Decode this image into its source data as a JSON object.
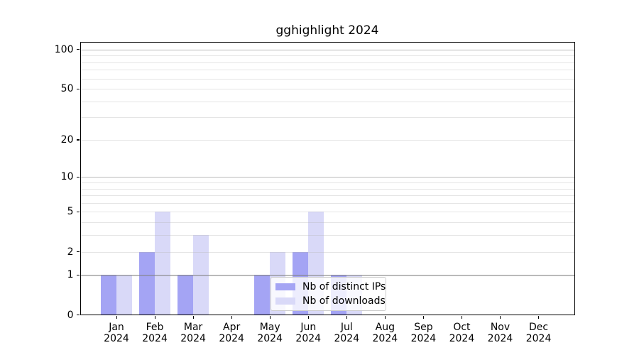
{
  "chart_data": {
    "type": "bar",
    "title": "gghighlight 2024",
    "categories": [
      "Jan",
      "Feb",
      "Mar",
      "Apr",
      "May",
      "Jun",
      "Jul",
      "Aug",
      "Sep",
      "Oct",
      "Nov",
      "Dec"
    ],
    "year_label": "2024",
    "series": [
      {
        "name": "Nb of distinct IPs",
        "color": "#a4a4f4",
        "values": [
          1,
          2,
          1,
          0,
          1,
          2,
          1,
          0,
          0,
          0,
          0,
          0
        ]
      },
      {
        "name": "Nb of downloads",
        "color": "#d9d9f8",
        "values": [
          1,
          5,
          3,
          0,
          2,
          5,
          1,
          0,
          0,
          0,
          0,
          0
        ]
      }
    ],
    "y_axis": {
      "scale": "log1p",
      "tick_labels": [
        "100",
        "50",
        "20",
        "10",
        "5",
        "2",
        "1",
        "0"
      ],
      "tick_values": [
        100,
        50,
        20,
        10,
        5,
        2,
        1,
        0
      ],
      "major_grid_values": [
        1,
        10,
        100
      ],
      "minor_grid_values": [
        2,
        3,
        4,
        5,
        6,
        7,
        8,
        9,
        20,
        30,
        40,
        50,
        60,
        70,
        80,
        90
      ],
      "ylim": [
        0,
        115
      ]
    },
    "legend": {
      "position": "lower-right-of-center",
      "entries": [
        "Nb of distinct IPs",
        "Nb of downloads"
      ]
    },
    "colors": {
      "grid_major": "#c6c6c6",
      "grid_minor": "#eaeaea",
      "spine": "#000000",
      "background": "#ffffff"
    }
  }
}
